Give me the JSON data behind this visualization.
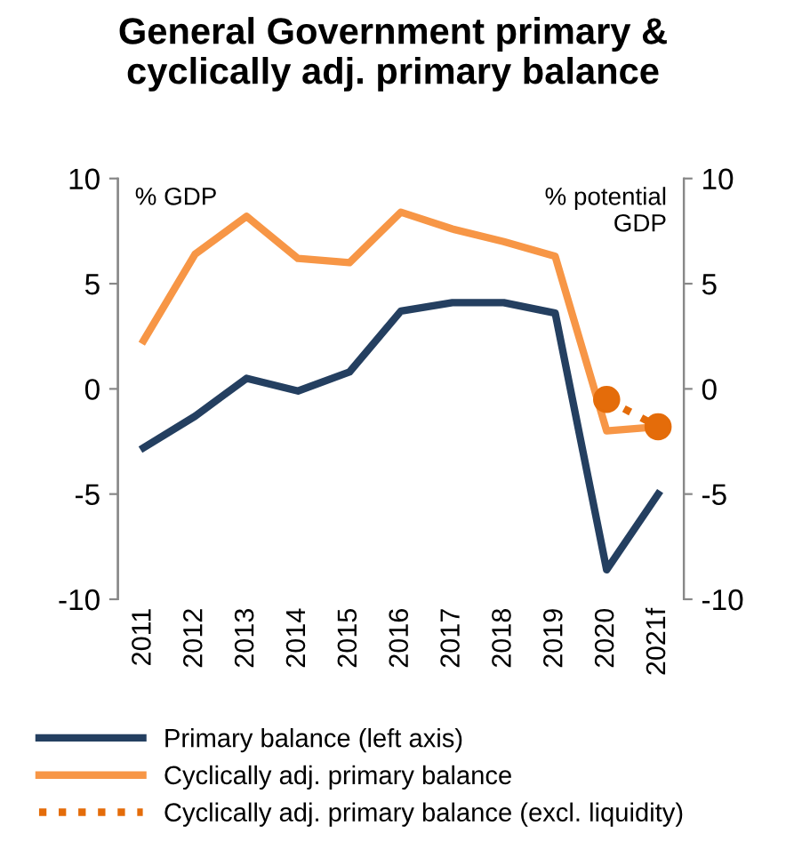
{
  "chart_data": {
    "type": "line",
    "title": "General Government primary &\ncyclically adj. primary balance",
    "ylabel": "% GDP",
    "y2label": "% potential\nGDP",
    "categories": [
      "2011",
      "2012",
      "2013",
      "2014",
      "2015",
      "2016",
      "2017",
      "2018",
      "2019",
      "2020",
      "2021f"
    ],
    "series": [
      {
        "name": "Primary balance (left axis)",
        "color": "#243f60",
        "values": [
          -2.8,
          -1.3,
          0.5,
          -0.1,
          0.8,
          3.7,
          4.1,
          4.1,
          3.6,
          -8.6,
          -5.0
        ],
        "line_style": "solid",
        "marker": "none"
      },
      {
        "name": "Cyclically adj. primary balance",
        "color": "#f79646",
        "values": [
          2.3,
          6.4,
          8.2,
          6.2,
          6.0,
          8.4,
          7.6,
          7.0,
          6.3,
          -2.0,
          -1.8
        ],
        "line_style": "solid",
        "marker": "none"
      },
      {
        "name": "Cyclically adj. primary balance (excl. liquidity)",
        "color": "#e46c0a",
        "values": [
          null,
          null,
          null,
          null,
          null,
          null,
          null,
          null,
          null,
          -0.5,
          -1.8
        ],
        "line_style": "dotted",
        "marker": "circle"
      }
    ],
    "ylim": [
      -10,
      10
    ],
    "yticks": [
      -10,
      -5,
      0,
      5,
      10
    ],
    "y2lim": [
      -10,
      10
    ],
    "y2ticks": [
      -10,
      -5,
      0,
      5,
      10
    ],
    "grid": false,
    "legend": "bottom"
  }
}
